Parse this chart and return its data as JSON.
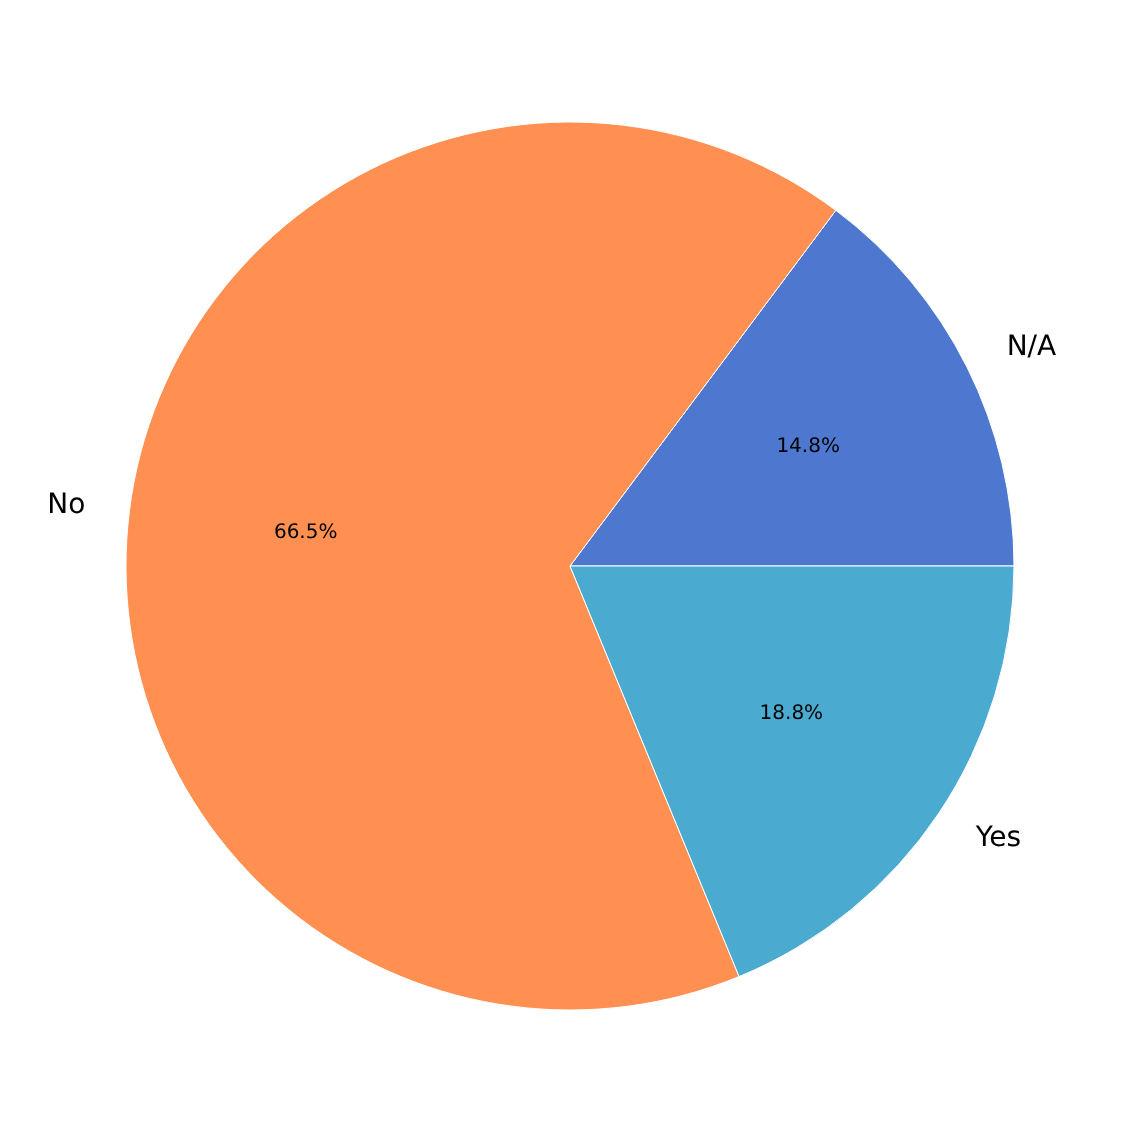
{
  "chart_data": {
    "type": "pie",
    "categories": [
      "N/A",
      "No",
      "Yes"
    ],
    "values": [
      14.8,
      66.5,
      18.8
    ],
    "colors": [
      "#4e78cf",
      "#ff9052",
      "#4baad0"
    ],
    "value_labels": [
      "14.8%",
      "66.5%",
      "18.8%"
    ]
  }
}
